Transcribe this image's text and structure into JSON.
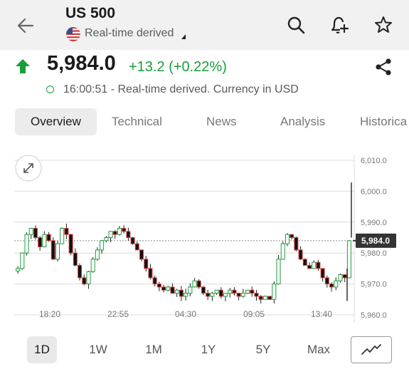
{
  "header": {
    "title": "US 500",
    "subtitle": "Real-time derived"
  },
  "quote": {
    "price": "5,984.0",
    "change": "+13.2 (+0.22%)",
    "time_info": "16:00:51 - Real-time derived. Currency in USD"
  },
  "tabs": [
    {
      "label": "Overview"
    },
    {
      "label": "Technical"
    },
    {
      "label": "News"
    },
    {
      "label": "Analysis"
    },
    {
      "label": "Historica"
    }
  ],
  "colors": {
    "up": "#1a9e3a",
    "down": "#e03a3a",
    "text": "#1b1b1b",
    "muted": "#5a5a5a",
    "appbar": "#f1f1f1"
  },
  "chart_data": {
    "type": "candlestick",
    "y_ticks": [
      "6,010.0",
      "6,000.0",
      "5,990.0",
      "5,980.0",
      "5,970.0",
      "5,960.0"
    ],
    "y_tick_values": [
      6010,
      6000,
      5990,
      5980,
      5970,
      5960
    ],
    "ylim": [
      5960,
      6010
    ],
    "x_ticks": [
      "18:20",
      "22:55",
      "04:30",
      "09:05",
      "13:40"
    ],
    "last_price_label": "5,984.0",
    "last_price": 5984.0,
    "grid": true,
    "series_closes": [
      5975,
      5980,
      5986,
      5988,
      5985,
      5982,
      5986,
      5984,
      5978,
      5983,
      5988,
      5986,
      5980,
      5976,
      5972,
      5970,
      5974,
      5978,
      5981,
      5984,
      5985,
      5987,
      5986,
      5988,
      5987,
      5985,
      5983,
      5981,
      5978,
      5975,
      5972,
      5970,
      5969,
      5968,
      5969,
      5967,
      5968,
      5966,
      5967,
      5969,
      5971,
      5969,
      5967,
      5966,
      5967,
      5968,
      5966,
      5967,
      5968,
      5967,
      5966,
      5967,
      5968,
      5967,
      5966,
      5965,
      5966,
      5965,
      5970,
      5978,
      5983,
      5986,
      5985,
      5981,
      5978,
      5976,
      5975,
      5977,
      5975,
      5972,
      5970,
      5969,
      5971,
      5973,
      5972,
      5984
    ]
  },
  "ranges": [
    {
      "label": "1D"
    },
    {
      "label": "1W"
    },
    {
      "label": "1M"
    },
    {
      "label": "1Y"
    },
    {
      "label": "5Y"
    },
    {
      "label": "Max"
    }
  ],
  "icons": {
    "back": "arrow-left-icon",
    "search": "search-icon",
    "alert": "bell-plus-icon",
    "watchlist": "star-icon",
    "share": "share-icon",
    "expand": "expand-icon",
    "chart_type": "line-chart-icon"
  }
}
